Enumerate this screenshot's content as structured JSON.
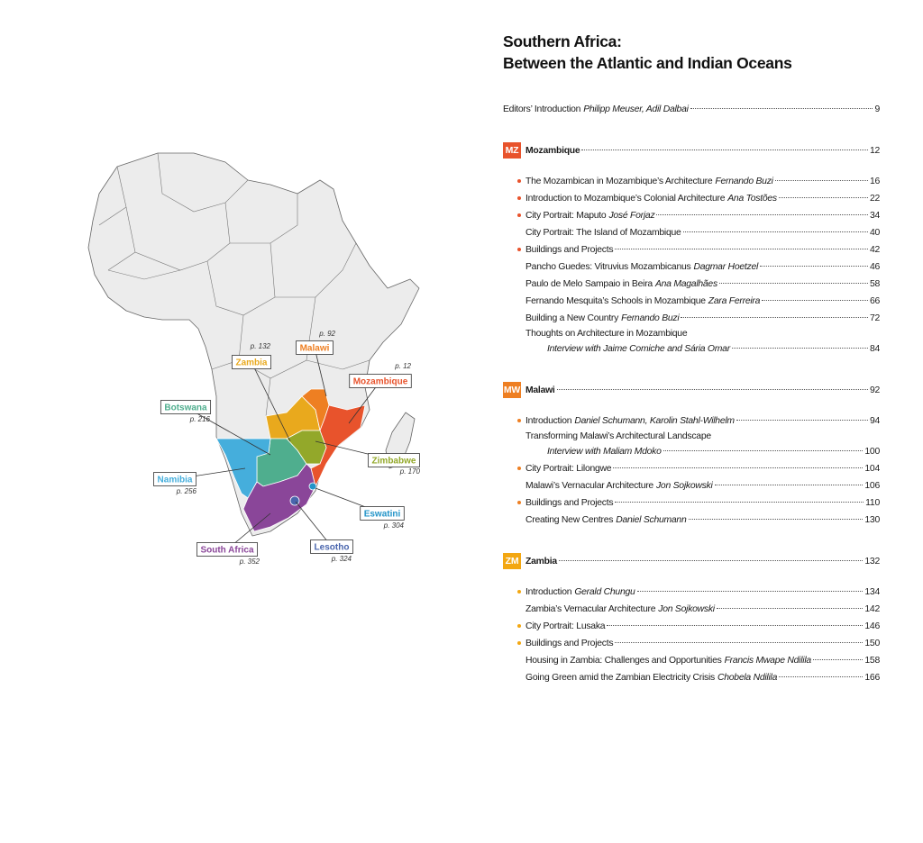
{
  "title": [
    "Southern Africa:",
    "Between the Atlantic and Indian Oceans"
  ],
  "intro": {
    "title": "Editors’ Introduction",
    "author": "Philipp Meuser, Adil Dalbai",
    "page": 9
  },
  "sections": [
    {
      "code": "MZ",
      "name": "Mozambique",
      "page": 12,
      "color": "#e8532c",
      "entries": [
        {
          "title": "The Mozambican in Mozambique’s Architecture",
          "author": "Fernando Buzi",
          "page": 16,
          "bullet": true
        },
        {
          "title": "Introduction to Mozambique’s Colonial Architecture",
          "author": "Ana Tostões",
          "page": 22,
          "bullet": true
        },
        {
          "title": "City Portrait: Maputo",
          "author": "José Forjaz",
          "page": 34,
          "bullet": true
        },
        {
          "title": "City Portrait: The Island of Mozambique",
          "page": 40,
          "bullet": false
        },
        {
          "title": "Buildings and Projects",
          "page": 42,
          "bullet": true
        },
        {
          "title": "Pancho Guedes: Vitruvius Mozambicanus",
          "author": "Dagmar Hoetzel",
          "page": 46,
          "bullet": false
        },
        {
          "title": "Paulo de Melo Sampaio in Beira",
          "author": "Ana Magalhães",
          "page": 58,
          "bullet": false
        },
        {
          "title": "Fernando Mesquita’s Schools in Mozambique",
          "author": "Zara Ferreira",
          "page": 66,
          "bullet": false
        },
        {
          "title": "Building a New Country",
          "author": "Fernando Buzi",
          "page": 72,
          "bullet": false
        },
        {
          "title": "Thoughts on Architecture in Mozambique",
          "subtitle": "Interview with Jaime Comiche and Sária Omar",
          "page": 84,
          "bullet": false
        }
      ]
    },
    {
      "code": "MW",
      "name": "Malawi",
      "page": 92,
      "color": "#ee7f22",
      "entries": [
        {
          "title": "Introduction",
          "author": "Daniel Schumann, Karolin Stahl-Wilhelm",
          "page": 94,
          "bullet": true
        },
        {
          "title": "Transforming Malawi’s Architectural Landscape",
          "subtitle": "Interview with Maliam Mdoko",
          "page": 100,
          "bullet": false
        },
        {
          "title": "City Portrait: Lilongwe",
          "page": 104,
          "bullet": true
        },
        {
          "title": "Malawi’s Vernacular Architecture",
          "author": "Jon Sojkowski",
          "page": 106,
          "bullet": false
        },
        {
          "title": "Buildings and Projects",
          "page": 110,
          "bullet": true
        },
        {
          "title": "Creating New Centres",
          "author": "Daniel Schumann",
          "page": 130,
          "bullet": false
        }
      ]
    },
    {
      "code": "ZM",
      "name": "Zambia",
      "page": 132,
      "color": "#f3a712",
      "entries": [
        {
          "title": "Introduction",
          "author": "Gerald Chungu",
          "page": 134,
          "bullet": true
        },
        {
          "title": "Zambia’s Vernacular Architecture",
          "author": "Jon Sojkowski",
          "page": 142,
          "bullet": false
        },
        {
          "title": "City Portrait: Lusaka",
          "page": 146,
          "bullet": true
        },
        {
          "title": "Buildings and Projects",
          "page": 150,
          "bullet": true
        },
        {
          "title": "Housing in Zambia: Challenges and Opportunities",
          "author": "Francis Mwape Ndilila",
          "page": 158,
          "bullet": false
        },
        {
          "title": "Going Green amid the Zambian Electricity Crisis",
          "author": "Chobela Ndilila",
          "page": 166,
          "bullet": false
        }
      ]
    }
  ],
  "map": {
    "labels": [
      {
        "name": "Zambia",
        "page": "p. 132",
        "color": "#e9a91d"
      },
      {
        "name": "Malawi",
        "page": "p. 92",
        "color": "#ee7f22"
      },
      {
        "name": "Mozambique",
        "page": "p. 12",
        "color": "#e8532c"
      },
      {
        "name": "Botswana",
        "page": "p. 216",
        "color": "#4fae8e"
      },
      {
        "name": "Zimbabwe",
        "page": "p. 170",
        "color": "#93a82a"
      },
      {
        "name": "Namibia",
        "page": "p. 256",
        "color": "#45aedc"
      },
      {
        "name": "Eswatini",
        "page": "p. 304",
        "color": "#2394c8"
      },
      {
        "name": "South Africa",
        "page": "p. 352",
        "color": "#8a4699"
      },
      {
        "name": "Lesotho",
        "page": "p. 324",
        "color": "#4965ad"
      }
    ]
  }
}
